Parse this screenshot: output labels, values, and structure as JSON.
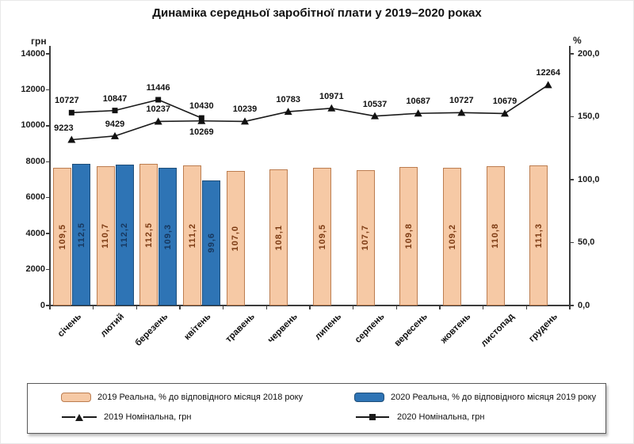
{
  "title": "Динаміка середньої заробітної плати у 2019–2020 роках",
  "chart_data": {
    "type": "bar",
    "subtype": "combo-bar-line",
    "title": "Динаміка середньої заробітної плати у 2019–2020 роках",
    "categories": [
      "січень",
      "лютий",
      "березень",
      "квітень",
      "травень",
      "червень",
      "липень",
      "серпень",
      "вересень",
      "жовтень",
      "листопад",
      "грудень"
    ],
    "left_axis": {
      "label": "грн",
      "min": 0,
      "max": 14000,
      "tick_step": 2000,
      "tick_labels": [
        "0",
        "2000",
        "4000",
        "6000",
        "8000",
        "10000",
        "12000",
        "14000"
      ]
    },
    "right_axis": {
      "label": "%",
      "min": 0,
      "max": 200,
      "tick_step": 50,
      "tick_labels": [
        "0,0",
        "50,0",
        "100,0",
        "150,0",
        "200,0"
      ]
    },
    "grid": false,
    "legend_position": "bottom",
    "series": [
      {
        "name": "2019 Реальна, % до відповідного місяця 2018 року",
        "type": "bar",
        "axis": "right",
        "fill": "#F6C9A5",
        "border": "#BC7D50",
        "label_color": "#7C3A12",
        "values": [
          109.5,
          110.7,
          112.5,
          111.2,
          107.0,
          108.1,
          109.5,
          107.7,
          109.8,
          109.2,
          110.8,
          111.3
        ],
        "labels": [
          "109,5",
          "110,7",
          "112,5",
          "111,2",
          "107,0",
          "108,1",
          "109,5",
          "107,7",
          "109,8",
          "109,2",
          "110,8",
          "111,3"
        ]
      },
      {
        "name": "2020 Реальна, % до відповідного місяця 2019 року",
        "type": "bar",
        "axis": "right",
        "fill": "#2E74B5",
        "border": "#1F4E79",
        "label_color": "#17375E",
        "values": [
          112.5,
          112.2,
          109.3,
          99.6,
          null,
          null,
          null,
          null,
          null,
          null,
          null,
          null
        ],
        "labels": [
          "112,5",
          "112,2",
          "109,3",
          "99,6",
          null,
          null,
          null,
          null,
          null,
          null,
          null,
          null
        ]
      },
      {
        "name": "2019 Номінальна, грн",
        "type": "line",
        "axis": "left",
        "marker": "triangle",
        "color": "#1A1A1A",
        "values": [
          9223,
          9429,
          10237,
          10269,
          10239,
          10783,
          10971,
          10537,
          10687,
          10727,
          10679,
          12264
        ],
        "labels": [
          "9223",
          "9429",
          "10237",
          "10269",
          "10239",
          "10783",
          "10971",
          "10537",
          "10687",
          "10727",
          "10679",
          "12264"
        ],
        "label_pos": [
          "above",
          "above",
          "above",
          "below",
          "above",
          "above",
          "above",
          "above",
          "above",
          "above",
          "above",
          "above"
        ],
        "label_dx": [
          -10,
          0,
          0,
          0,
          0,
          0,
          0,
          0,
          0,
          0,
          0,
          0
        ]
      },
      {
        "name": "2020 Номінальна, грн",
        "type": "line",
        "axis": "left",
        "marker": "square",
        "color": "#1A1A1A",
        "values": [
          10727,
          10847,
          11446,
          10430,
          null,
          null,
          null,
          null,
          null,
          null,
          null,
          null
        ],
        "labels": [
          "10727",
          "10847",
          "11446",
          "10430",
          null,
          null,
          null,
          null,
          null,
          null,
          null,
          null
        ],
        "label_pos": [
          "above",
          "above",
          "above",
          "above"
        ],
        "label_dx": [
          -6,
          0,
          0,
          0
        ]
      }
    ]
  },
  "legend": {
    "items": [
      {
        "swatch": "bar-peach",
        "label": "2019 Реальна, % до відповідного місяця 2018 року"
      },
      {
        "swatch": "bar-blue",
        "label": "2020 Реальна, % до відповідного місяця 2019 року"
      },
      {
        "swatch": "line-triangle",
        "label": "2019 Номінальна, грн"
      },
      {
        "swatch": "line-square",
        "label": "2020 Номінальна, грн"
      }
    ]
  }
}
